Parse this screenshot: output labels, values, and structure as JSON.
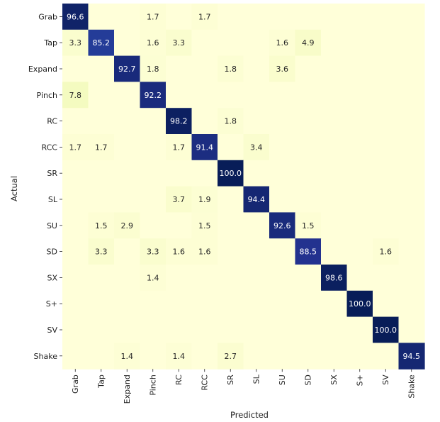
{
  "chart_data": {
    "type": "heatmap",
    "title": "",
    "xlabel": "Predicted",
    "ylabel": "Actual",
    "categories": [
      "Grab",
      "Tap",
      "Expand",
      "Pinch",
      "RC",
      "RCC",
      "SR",
      "SL",
      "SU",
      "SD",
      "SX",
      "S+",
      "SV",
      "Shake"
    ],
    "colormap": "YlGnBu",
    "value_range": [
      0,
      100
    ],
    "colorbar": false,
    "matrix": [
      [
        96.6,
        null,
        null,
        1.7,
        null,
        1.7,
        null,
        null,
        null,
        null,
        null,
        null,
        null,
        null
      ],
      [
        3.3,
        85.2,
        null,
        1.6,
        3.3,
        null,
        null,
        null,
        1.6,
        4.9,
        null,
        null,
        null,
        null
      ],
      [
        null,
        null,
        92.7,
        1.8,
        null,
        null,
        1.8,
        null,
        3.6,
        null,
        null,
        null,
        null,
        null
      ],
      [
        7.8,
        null,
        null,
        92.2,
        null,
        null,
        null,
        null,
        null,
        null,
        null,
        null,
        null,
        null
      ],
      [
        null,
        null,
        null,
        null,
        98.2,
        null,
        1.8,
        null,
        null,
        null,
        null,
        null,
        null,
        null
      ],
      [
        1.7,
        1.7,
        null,
        null,
        1.7,
        91.4,
        null,
        3.4,
        null,
        null,
        null,
        null,
        null,
        null
      ],
      [
        null,
        null,
        null,
        null,
        null,
        null,
        100.0,
        null,
        null,
        null,
        null,
        null,
        null,
        null
      ],
      [
        null,
        null,
        null,
        null,
        3.7,
        1.9,
        null,
        94.4,
        null,
        null,
        null,
        null,
        null,
        null
      ],
      [
        null,
        1.5,
        2.9,
        null,
        null,
        1.5,
        null,
        null,
        92.6,
        1.5,
        null,
        null,
        null,
        null
      ],
      [
        null,
        3.3,
        null,
        3.3,
        1.6,
        1.6,
        null,
        null,
        null,
        88.5,
        null,
        null,
        1.6,
        null
      ],
      [
        null,
        null,
        null,
        1.4,
        null,
        null,
        null,
        null,
        null,
        null,
        98.6,
        null,
        null,
        null
      ],
      [
        null,
        null,
        null,
        null,
        null,
        null,
        null,
        null,
        null,
        null,
        null,
        100.0,
        null,
        null
      ],
      [
        null,
        null,
        null,
        null,
        null,
        null,
        null,
        null,
        null,
        null,
        null,
        null,
        100.0,
        null
      ],
      [
        null,
        null,
        1.4,
        null,
        1.4,
        null,
        2.7,
        null,
        null,
        null,
        null,
        null,
        null,
        94.5
      ]
    ]
  }
}
